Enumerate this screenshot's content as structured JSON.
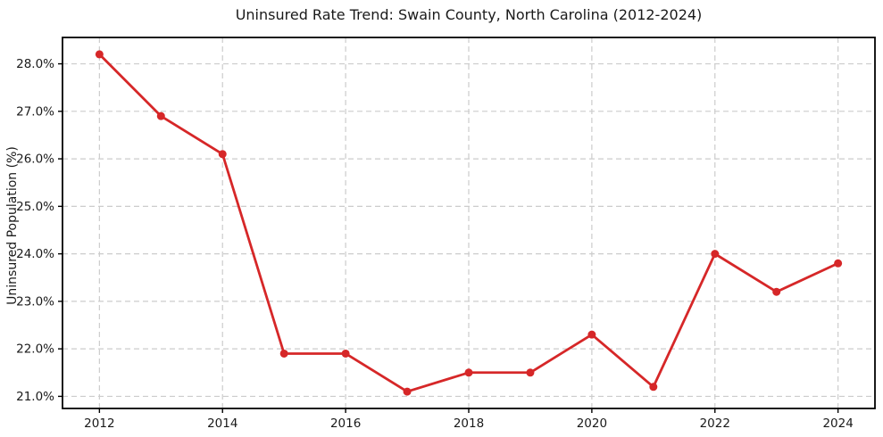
{
  "chart_data": {
    "type": "line",
    "title": "Uninsured Rate Trend: Swain County, North Carolina (2012-2024)",
    "xlabel": "",
    "ylabel": "Uninsured Population (%)",
    "x": [
      2012,
      2013,
      2014,
      2015,
      2016,
      2017,
      2018,
      2019,
      2020,
      2021,
      2022,
      2023,
      2024
    ],
    "values": [
      28.2,
      26.9,
      26.1,
      21.9,
      21.9,
      21.1,
      21.5,
      21.5,
      22.3,
      21.2,
      24.0,
      23.2,
      23.8
    ],
    "xlim": [
      2011.4,
      2024.6
    ],
    "ylim": [
      20.745,
      28.555
    ],
    "xticks": [
      2012,
      2014,
      2016,
      2018,
      2020,
      2022,
      2024
    ],
    "xtick_labels": [
      "2012",
      "2014",
      "2016",
      "2018",
      "2020",
      "2022",
      "2024"
    ],
    "yticks": [
      21,
      22,
      23,
      24,
      25,
      26,
      27,
      28
    ],
    "ytick_labels": [
      "21.0%",
      "22.0%",
      "23.0%",
      "24.0%",
      "25.0%",
      "26.0%",
      "27.0%",
      "28.0%"
    ],
    "grid": true,
    "grid_style": "dashed",
    "legend": false,
    "line_color": "#d62728",
    "marker": "circle",
    "marker_color": "#d62728",
    "grid_color": "#cccccc",
    "spine_color": "#000000",
    "text_color": "#1a1a1a",
    "background": "#ffffff"
  }
}
